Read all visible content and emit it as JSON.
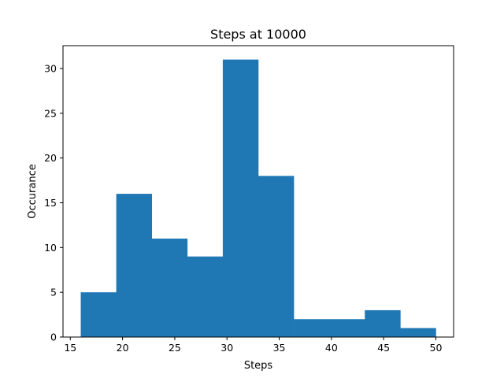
{
  "chart_data": {
    "type": "bar",
    "subtype": "histogram",
    "title": "Steps at 10000",
    "xlabel": "Steps",
    "ylabel": "Occurance",
    "xlim": [
      14.3,
      51.7
    ],
    "ylim": [
      0,
      32.55
    ],
    "xticks": [
      15,
      20,
      25,
      30,
      35,
      40,
      45,
      50
    ],
    "yticks": [
      0,
      5,
      10,
      15,
      20,
      25,
      30
    ],
    "bin_edges": [
      16.0,
      19.4,
      22.8,
      26.2,
      29.6,
      33.0,
      36.4,
      39.8,
      43.2,
      46.6,
      50.0
    ],
    "values": [
      5,
      16,
      11,
      9,
      31,
      18,
      2,
      2,
      3,
      1
    ],
    "bar_color": "#1f77b4",
    "grid": false,
    "legend": false
  }
}
